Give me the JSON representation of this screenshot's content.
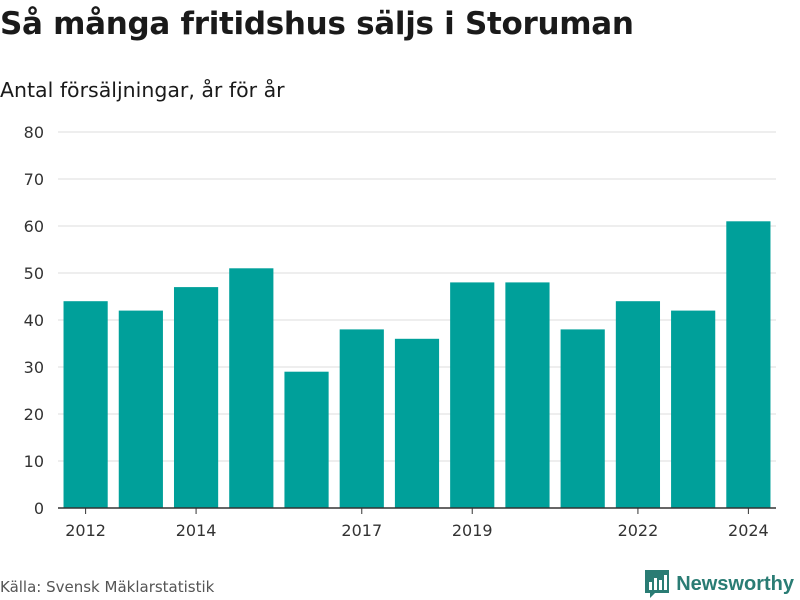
{
  "header": {
    "title": "Så många fritidshus säljs i Storuman",
    "subtitle": "Antal försäljningar, år för år"
  },
  "footer": {
    "source": "Källa: Svensk Mäklarstatistik",
    "brand": "Newsworthy"
  },
  "colors": {
    "bar": "#00a09a",
    "brand": "#2a7c74",
    "grid": "#dddddd",
    "axis": "#333333"
  },
  "chart_data": {
    "type": "bar",
    "title": "Så många fritidshus säljs i Storuman",
    "subtitle": "Antal försäljningar, år för år",
    "xlabel": "",
    "ylabel": "",
    "categories": [
      "2012",
      "2013",
      "2014",
      "2015",
      "2016",
      "2017",
      "2018",
      "2019",
      "2020",
      "2021",
      "2022",
      "2023",
      "2024"
    ],
    "values": [
      44,
      42,
      47,
      51,
      29,
      38,
      36,
      48,
      48,
      38,
      44,
      42,
      61
    ],
    "x_tick_labels": [
      "2012",
      "2014",
      "2017",
      "2019",
      "2022",
      "2024"
    ],
    "y_ticks": [
      0,
      10,
      20,
      30,
      40,
      50,
      60,
      70,
      80
    ],
    "ylim": [
      0,
      80
    ],
    "grid": true,
    "legend": "none"
  }
}
